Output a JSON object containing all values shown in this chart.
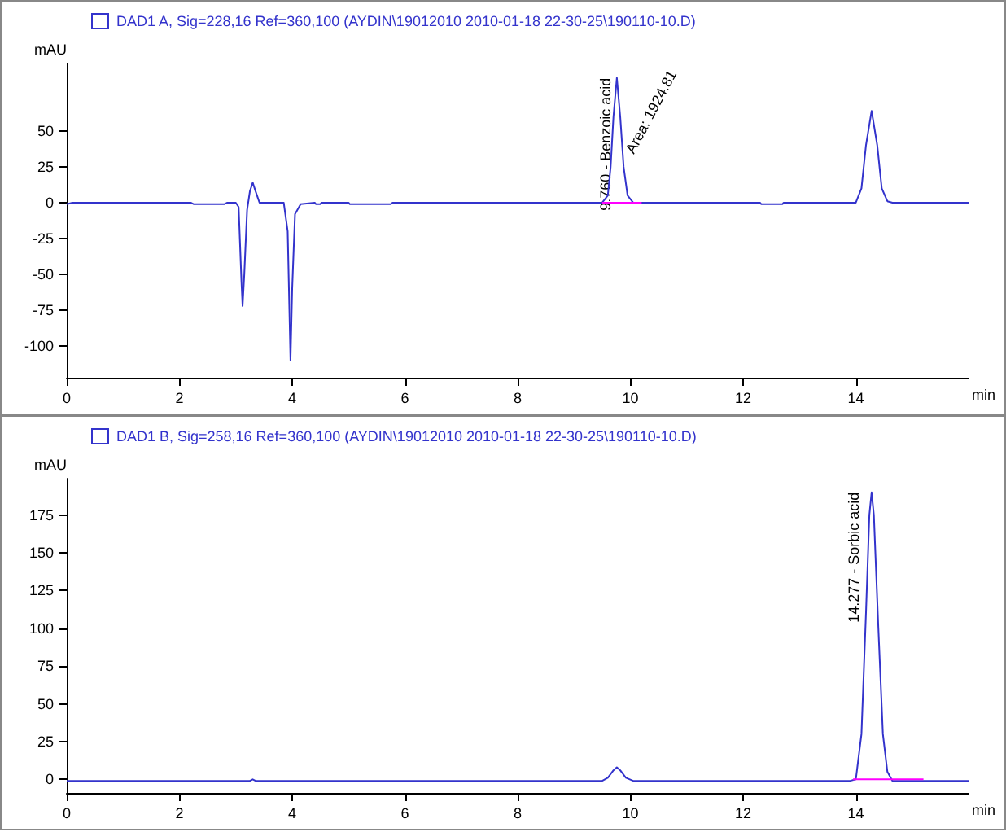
{
  "chart_data": [
    {
      "type": "line",
      "xlabel": "min",
      "ylabel": "mAU",
      "legend": "top left",
      "marker": "none",
      "xlim": [
        0,
        16
      ],
      "xticks": [
        0,
        2,
        4,
        6,
        8,
        10,
        12,
        14
      ],
      "ylim": [
        -122,
        97
      ],
      "yticks": [
        -100,
        -75,
        -50,
        -25,
        0,
        25,
        50
      ],
      "annotations": [
        {
          "text": "9.760 - Benzoic acid",
          "x": 9.76,
          "y": 87
        },
        {
          "text": "Area: 1924.81",
          "x": 9.87,
          "y": 35
        }
      ],
      "series": [
        {
          "name": "DAD1 A, Sig=228,16 Ref=360,100 (AYDIN\\19012010 2010-01-18 22-30-25\\190110-10.D)",
          "color": "#3333cc",
          "x": [
            0,
            0.1,
            2.2,
            2.25,
            2.8,
            2.85,
            3.0,
            3.05,
            3.1,
            3.12,
            3.15,
            3.2,
            3.25,
            3.3,
            3.35,
            3.42,
            3.85,
            3.92,
            3.97,
            4.0,
            4.05,
            4.15,
            4.4,
            4.42,
            4.5,
            4.52,
            5.0,
            5.02,
            5.75,
            5.78,
            9.5,
            9.6,
            9.65,
            9.7,
            9.76,
            9.82,
            9.88,
            9.95,
            10.05,
            12.3,
            12.32,
            12.7,
            12.72,
            14.0,
            14.1,
            14.18,
            14.28,
            14.38,
            14.46,
            14.56,
            14.65,
            16
          ],
          "values": [
            -1,
            0,
            0,
            -1,
            -1,
            0,
            0,
            -3,
            -55,
            -72,
            -50,
            -5,
            8,
            14,
            8,
            0,
            0,
            -20,
            -110,
            -60,
            -8,
            -1,
            0,
            -1,
            -1,
            0,
            0,
            -1,
            -1,
            0,
            0,
            5,
            25,
            60,
            87,
            60,
            25,
            5,
            0,
            0,
            -1,
            -1,
            0,
            0,
            10,
            40,
            64,
            40,
            10,
            1,
            0,
            0
          ]
        },
        {
          "color": "#ff00ff",
          "x": [
            9.5,
            10.2
          ],
          "values": [
            0,
            0
          ]
        }
      ]
    },
    {
      "type": "line",
      "xlabel": "min",
      "ylabel": "mAU",
      "legend": "top left",
      "marker": "none",
      "xlim": [
        0,
        16
      ],
      "xticks": [
        0,
        2,
        4,
        6,
        8,
        10,
        12,
        14
      ],
      "ylim": [
        -9,
        199
      ],
      "yticks": [
        0,
        25,
        50,
        75,
        100,
        125,
        150,
        175
      ],
      "annotations": [
        {
          "text": "14.277 - Sorbic acid",
          "x": 14.28,
          "y": 190
        }
      ],
      "series": [
        {
          "name": "DAD1 B, Sig=258,16 Ref=360,100 (AYDIN\\19012010 2010-01-18 22-30-25\\190110-10.D)",
          "color": "#3333cc",
          "x": [
            0,
            3.25,
            3.3,
            3.35,
            9.5,
            9.6,
            9.7,
            9.76,
            9.82,
            9.92,
            10.05,
            13.9,
            14.0,
            14.1,
            14.18,
            14.24,
            14.28,
            14.32,
            14.4,
            14.48,
            14.56,
            14.65,
            16
          ],
          "values": [
            -1,
            -1,
            0,
            -1,
            -1,
            1,
            6,
            8,
            6,
            1,
            -1,
            -1,
            0,
            30,
            110,
            175,
            190,
            175,
            100,
            30,
            5,
            -1,
            -1
          ]
        },
        {
          "color": "#ff00ff",
          "x": [
            13.95,
            15.2
          ],
          "values": [
            0,
            0
          ]
        }
      ]
    }
  ]
}
